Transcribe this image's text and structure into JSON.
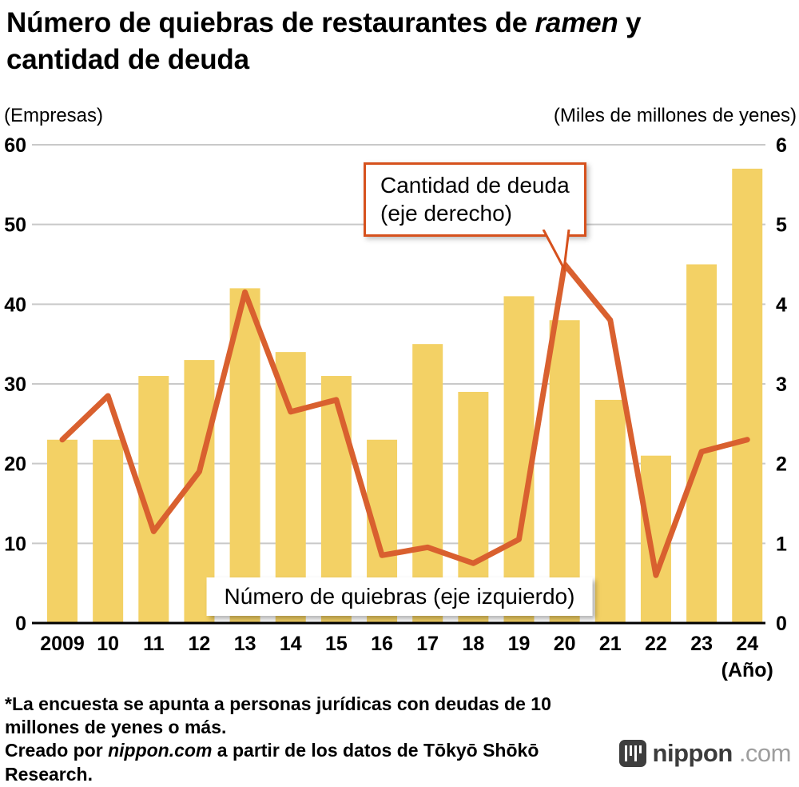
{
  "title": {
    "pre": "Número de quiebras de restaurantes de ",
    "emphasis": "ramen",
    "post": " y",
    "line2": "cantidad de deuda"
  },
  "axes": {
    "left_unit": "(Empresas)",
    "right_unit": "(Miles de millones de yenes)",
    "x_unit": "(Año)"
  },
  "annotations": {
    "debt_label_line1": "Cantidad de deuda",
    "debt_label_line2": "(eje derecho)",
    "bars_label": "Número de quiebras (eje izquierdo)"
  },
  "footnote": {
    "line1": "*La encuesta se apunta a personas jurídicas con deudas de 10 millones de yenes o más.",
    "line2_pre": "Creado por ",
    "line2_emphasis": "nippon.com",
    "line2_post": " a partir de los datos de Tōkyō Shōkō Research."
  },
  "logo": {
    "name": "nippon",
    "tld": ".com"
  },
  "colors": {
    "bar": "#f3d165",
    "line": "#d9602f",
    "grid": "#c9c9c9",
    "axis_line": "#000000",
    "callout_border": "#d6511d"
  },
  "chart_data": {
    "type": "bar+line",
    "title": "Número de quiebras de restaurantes de ramen y cantidad de deuda",
    "categories": [
      "2009",
      "10",
      "11",
      "12",
      "13",
      "14",
      "15",
      "16",
      "17",
      "18",
      "19",
      "20",
      "21",
      "22",
      "23",
      "24"
    ],
    "series": [
      {
        "name": "Número de quiebras (eje izquierdo)",
        "type": "bar",
        "axis": "left",
        "values": [
          23,
          23,
          31,
          33,
          42,
          34,
          31,
          23,
          35,
          29,
          41,
          38,
          28,
          21,
          45,
          57
        ]
      },
      {
        "name": "Cantidad de deuda (eje derecho)",
        "type": "line",
        "axis": "right",
        "values": [
          2.3,
          2.85,
          1.15,
          1.9,
          4.15,
          2.65,
          2.8,
          0.85,
          0.95,
          0.75,
          1.05,
          4.5,
          3.8,
          0.6,
          2.15,
          2.3
        ]
      }
    ],
    "left_axis": {
      "unit": "(Empresas)",
      "range": [
        0,
        60
      ],
      "ticks": [
        0,
        10,
        20,
        30,
        40,
        50,
        60
      ]
    },
    "right_axis": {
      "unit": "(Miles de millones de yenes)",
      "range": [
        0,
        6
      ],
      "ticks": [
        0,
        1,
        2,
        3,
        4,
        5,
        6
      ]
    },
    "x_axis": {
      "unit": "(Año)"
    },
    "grid": true,
    "legend": "annotation-callouts"
  }
}
